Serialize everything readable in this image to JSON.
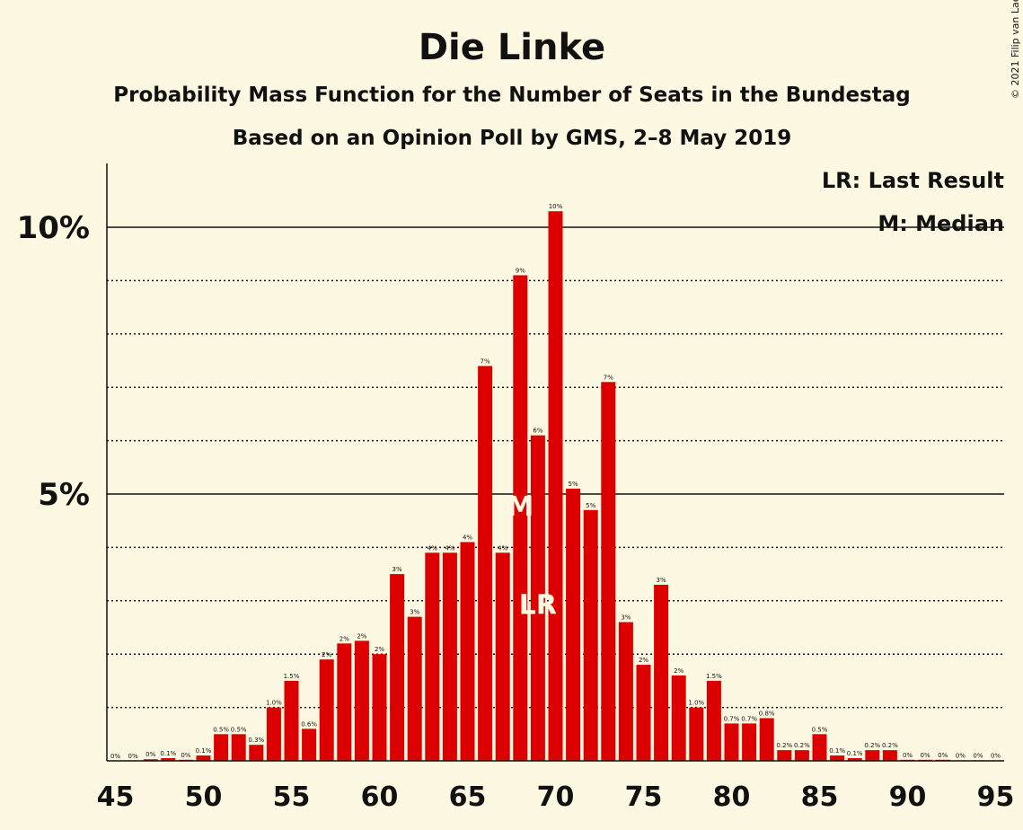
{
  "header": {
    "title": "Die Linke",
    "subtitle1": "Probability Mass Function for the Number of Seats in the Bundestag",
    "subtitle2": "Based on an Opinion Poll by GMS, 2–8 May 2019",
    "copyright": "© 2021 Filip van Laenen"
  },
  "legend": {
    "lr": "LR: Last Result",
    "m": "M: Median",
    "placement": "top-right"
  },
  "colors": {
    "bar": "#dd0000",
    "background": "#fdf8e1"
  },
  "chart_data": {
    "type": "bar",
    "x": [
      45,
      46,
      47,
      48,
      49,
      50,
      51,
      52,
      53,
      54,
      55,
      56,
      57,
      58,
      59,
      60,
      61,
      62,
      63,
      64,
      65,
      66,
      67,
      68,
      69,
      70,
      71,
      72,
      73,
      74,
      75,
      76,
      77,
      78,
      79,
      80,
      81,
      82,
      83,
      84,
      85,
      86,
      87,
      88,
      89,
      90,
      91,
      92,
      93,
      94,
      95
    ],
    "values": [
      0,
      0,
      0.03,
      0.05,
      0.02,
      0.1,
      0.5,
      0.5,
      0.3,
      1.0,
      1.5,
      0.6,
      1.9,
      2.2,
      2.25,
      2.0,
      3.5,
      2.7,
      3.9,
      3.9,
      4.1,
      7.4,
      3.9,
      9.1,
      6.1,
      10.3,
      5.1,
      4.7,
      7.1,
      2.6,
      1.8,
      3.3,
      1.6,
      1.0,
      1.5,
      0.7,
      0.7,
      0.8,
      0.2,
      0.2,
      0.5,
      0.1,
      0.05,
      0.2,
      0.2,
      0.02,
      0.02,
      0.02,
      0.01,
      0.01,
      0.01
    ],
    "labels": [
      "0%",
      "0%",
      "0%",
      "0.1%",
      "0%",
      "0.1%",
      "0.5%",
      "0.5%",
      "0.3%",
      "1.0%",
      "1.5%",
      "0.6%",
      "2%",
      "2%",
      "2%",
      "2%",
      "3%",
      "3%",
      "4%",
      "4%",
      "4%",
      "7%",
      "4%",
      "9%",
      "6%",
      "10%",
      "5%",
      "5%",
      "7%",
      "3%",
      "2%",
      "3%",
      "2%",
      "1.0%",
      "1.5%",
      "0.7%",
      "0.7%",
      "0.8%",
      "0.2%",
      "0.2%",
      "0.5%",
      "0.1%",
      "0.1%",
      "0.2%",
      "0.2%",
      "0%",
      "0%",
      "0%",
      "0%",
      "0%",
      "0%"
    ],
    "xticks": [
      45,
      50,
      55,
      60,
      65,
      70,
      75,
      80,
      85,
      90,
      95
    ],
    "yticks": [
      {
        "value": 5,
        "label": "5%"
      },
      {
        "value": 10,
        "label": "10%"
      }
    ],
    "ygrid_dotted": [
      1,
      2,
      3,
      4,
      6,
      7,
      8,
      9
    ],
    "xlim": [
      45,
      95
    ],
    "ylim": [
      0,
      11.2
    ],
    "median": {
      "seat": 68,
      "label": "M"
    },
    "last_result": {
      "seat": 69,
      "label": "LR"
    }
  }
}
